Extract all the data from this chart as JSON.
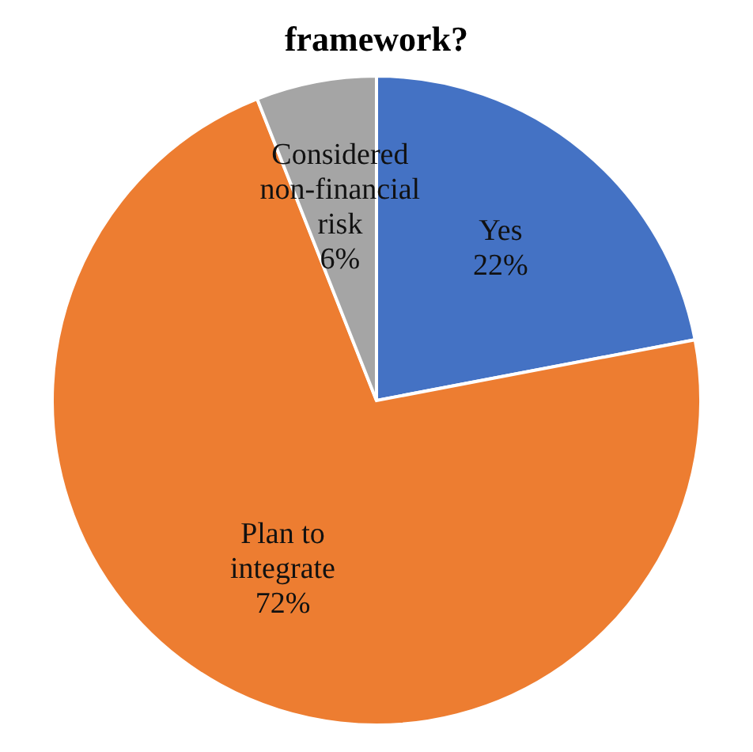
{
  "chart_data": {
    "type": "pie",
    "title": "framework?",
    "categories": [
      "Yes",
      "Plan to integrate",
      "Considered non-financial risk"
    ],
    "values": [
      22,
      72,
      6
    ],
    "colors": [
      "#4472c4",
      "#ed7d31",
      "#a5a5a5"
    ],
    "value_labels": [
      "22%",
      "72%",
      "6%"
    ]
  }
}
